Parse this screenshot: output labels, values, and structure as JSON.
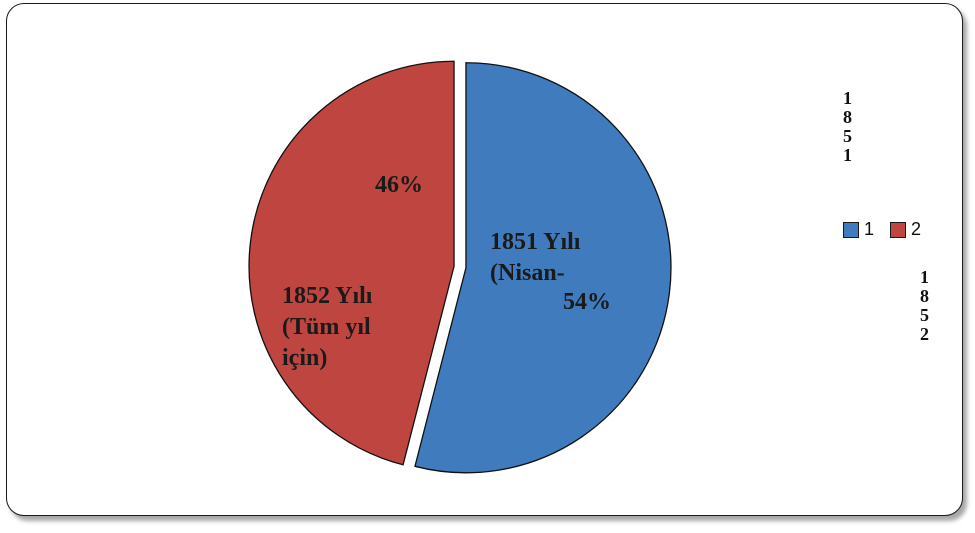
{
  "chart_data": {
    "type": "pie",
    "slices": [
      {
        "legend": "1",
        "value": 54,
        "percent_label": "54%",
        "category_lines": [
          "1851 Yılı",
          "(Nisan-"
        ],
        "color": "#3f7bbd"
      },
      {
        "legend": "2",
        "value": 46,
        "percent_label": "46%",
        "category_lines": [
          "1852 Yılı",
          "(Tüm yıl",
          "için)"
        ],
        "color": "#bf4540"
      }
    ],
    "start_angle_deg": 0,
    "exploded": true,
    "legend_placement": "right",
    "side_labels": [
      {
        "chars": [
          "1",
          "8",
          "5",
          "1"
        ]
      },
      {
        "chars": [
          "1",
          "8",
          "5",
          "2"
        ]
      }
    ]
  }
}
